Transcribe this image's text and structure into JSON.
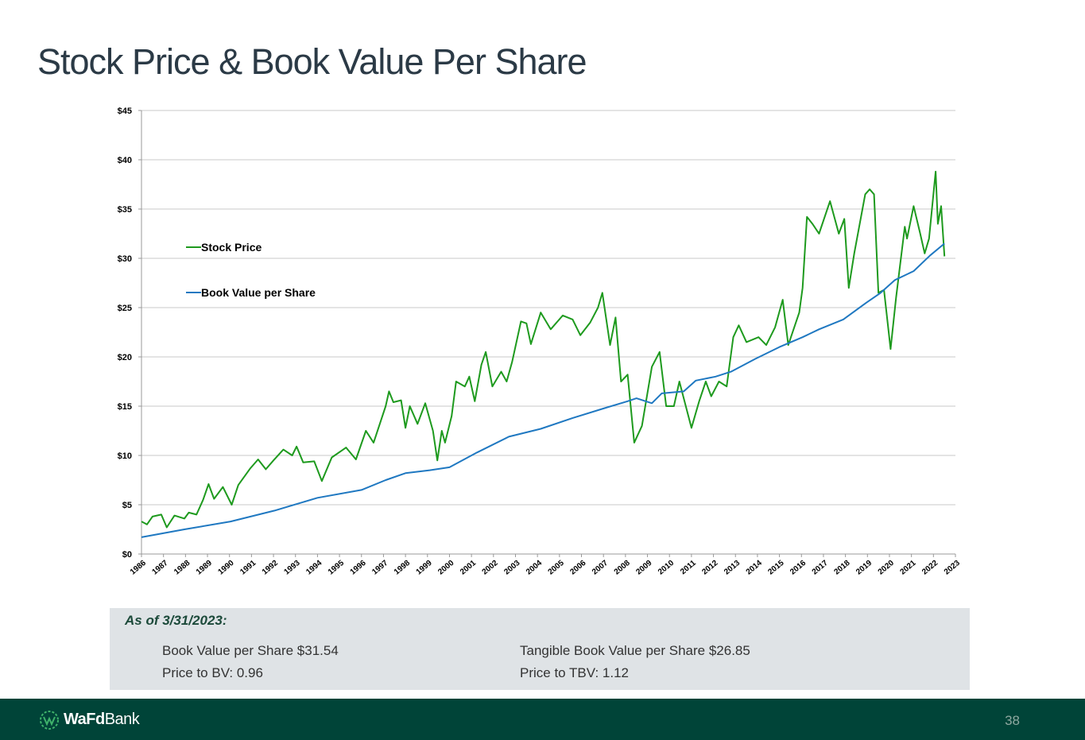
{
  "header": {
    "title": "Stock Price & Book Value Per Share"
  },
  "chart_data": {
    "type": "line",
    "xlim": [
      1986,
      2023
    ],
    "xticks": [
      1986,
      1987,
      1988,
      1989,
      1990,
      1991,
      1992,
      1993,
      1994,
      1995,
      1996,
      1997,
      1998,
      1999,
      2000,
      2001,
      2002,
      2003,
      2004,
      2005,
      2006,
      2007,
      2008,
      2009,
      2010,
      2011,
      2012,
      2013,
      2014,
      2015,
      2016,
      2017,
      2018,
      2019,
      2020,
      2021,
      2022,
      2023
    ],
    "ylim": [
      0,
      45
    ],
    "yticks": [
      {
        "value": 0,
        "label": "$0"
      },
      {
        "value": 5,
        "label": "$5"
      },
      {
        "value": 10,
        "label": "$10"
      },
      {
        "value": 15,
        "label": "$15"
      },
      {
        "value": 20,
        "label": "$20"
      },
      {
        "value": 25,
        "label": "$25"
      },
      {
        "value": 30,
        "label": "$30"
      },
      {
        "value": 35,
        "label": "$35"
      },
      {
        "value": 40,
        "label": "$40"
      },
      {
        "value": 45,
        "label": "$45"
      }
    ],
    "grid": true,
    "legend": "left",
    "series": [
      {
        "name": "Stock Price",
        "color": "#1e9a1e",
        "x": [
          1986.0,
          1986.25,
          1986.5,
          1986.9,
          1987.15,
          1987.5,
          1987.95,
          1988.15,
          1988.5,
          1988.8,
          1989.05,
          1989.3,
          1989.7,
          1990.1,
          1990.4,
          1990.95,
          1991.3,
          1991.65,
          1992.0,
          1992.45,
          1992.85,
          1993.05,
          1993.35,
          1993.85,
          1994.2,
          1994.65,
          1995.3,
          1995.75,
          1996.2,
          1996.55,
          1997.1,
          1997.25,
          1997.45,
          1997.8,
          1998.0,
          1998.2,
          1998.55,
          1998.9,
          1999.25,
          1999.45,
          1999.65,
          1999.8,
          2000.1,
          2000.3,
          2000.7,
          2000.9,
          2001.15,
          2001.45,
          2001.65,
          2001.95,
          2002.35,
          2002.6,
          2002.85,
          2003.25,
          2003.5,
          2003.7,
          2004.15,
          2004.6,
          2005.15,
          2005.6,
          2005.95,
          2006.4,
          2006.75,
          2006.95,
          2007.3,
          2007.55,
          2007.8,
          2008.1,
          2008.4,
          2008.75,
          2009.2,
          2009.55,
          2009.85,
          2010.2,
          2010.45,
          2011.0,
          2011.35,
          2011.65,
          2011.9,
          2012.25,
          2012.6,
          2012.9,
          2013.15,
          2013.5,
          2014.05,
          2014.4,
          2014.8,
          2015.15,
          2015.4,
          2015.9,
          2016.05,
          2016.25,
          2016.5,
          2016.8,
          2017.3,
          2017.7,
          2017.95,
          2018.15,
          2018.4,
          2018.65,
          2018.9,
          2019.1,
          2019.3,
          2019.5,
          2019.75,
          2020.05,
          2020.3,
          2020.7,
          2020.8,
          2021.1,
          2021.4,
          2021.6,
          2021.8,
          2022.1,
          2022.2,
          2022.35,
          2022.5
        ],
        "values": [
          3.3,
          3.0,
          3.8,
          4.0,
          2.7,
          3.9,
          3.6,
          4.2,
          4.0,
          5.5,
          7.1,
          5.6,
          6.8,
          5.0,
          7.0,
          8.7,
          9.6,
          8.6,
          9.5,
          10.6,
          10.0,
          10.9,
          9.3,
          9.4,
          7.4,
          9.8,
          10.8,
          9.6,
          12.5,
          11.3,
          15.0,
          16.5,
          15.4,
          15.6,
          12.8,
          15.0,
          13.2,
          15.3,
          12.5,
          9.5,
          12.5,
          11.3,
          14.0,
          17.5,
          17.0,
          18.0,
          15.5,
          19.2,
          20.5,
          17.0,
          18.5,
          17.5,
          19.5,
          23.6,
          23.4,
          21.3,
          24.5,
          22.8,
          24.2,
          23.8,
          22.2,
          23.5,
          25.0,
          26.5,
          21.2,
          24.0,
          17.5,
          18.2,
          11.3,
          13.0,
          19.0,
          20.5,
          15.0,
          15.0,
          17.5,
          12.8,
          15.5,
          17.5,
          16.0,
          17.5,
          17.0,
          22.0,
          23.2,
          21.5,
          22.0,
          21.2,
          23.0,
          25.8,
          21.2,
          24.5,
          27.0,
          34.2,
          33.5,
          32.5,
          35.8,
          32.5,
          34.0,
          27.0,
          30.5,
          33.5,
          36.5,
          37.0,
          36.5,
          26.5,
          26.8,
          20.8,
          26.0,
          33.2,
          32.0,
          35.3,
          32.5,
          30.5,
          32.0,
          38.8,
          33.5,
          35.3,
          30.2
        ]
      },
      {
        "name": "Book Value per Share",
        "color": "#1f78c1",
        "x": [
          1986.0,
          1987.95,
          1990.05,
          1992.05,
          1994.0,
          1996.0,
          1997.1,
          1998.0,
          1999.1,
          2000.0,
          2001.25,
          2002.7,
          2004.15,
          2005.6,
          2007.05,
          2008.1,
          2008.5,
          2009.2,
          2009.65,
          2010.65,
          2011.2,
          2012.1,
          2012.8,
          2013.9,
          2015.0,
          2016.05,
          2016.8,
          2017.9,
          2018.95,
          2019.6,
          2020.25,
          2021.1,
          2021.85,
          2022.5
        ],
        "values": [
          1.7,
          2.5,
          3.3,
          4.4,
          5.7,
          6.5,
          7.5,
          8.2,
          8.5,
          8.8,
          10.3,
          11.9,
          12.7,
          13.8,
          14.8,
          15.5,
          15.8,
          15.3,
          16.3,
          16.5,
          17.6,
          18.0,
          18.5,
          19.8,
          21.0,
          22.0,
          22.8,
          23.8,
          25.5,
          26.5,
          27.8,
          28.7,
          30.3,
          31.5
        ]
      }
    ]
  },
  "info": {
    "heading": "As of 3/31/2023:",
    "items": [
      "Book Value per Share $31.54",
      "Tangible Book Value per Share $26.85",
      "Price to BV:  0.96",
      "Price to TBV:  1.12"
    ]
  },
  "footer": {
    "logo_bold": "WaFd",
    "logo_rest": "Bank",
    "page": "38"
  }
}
